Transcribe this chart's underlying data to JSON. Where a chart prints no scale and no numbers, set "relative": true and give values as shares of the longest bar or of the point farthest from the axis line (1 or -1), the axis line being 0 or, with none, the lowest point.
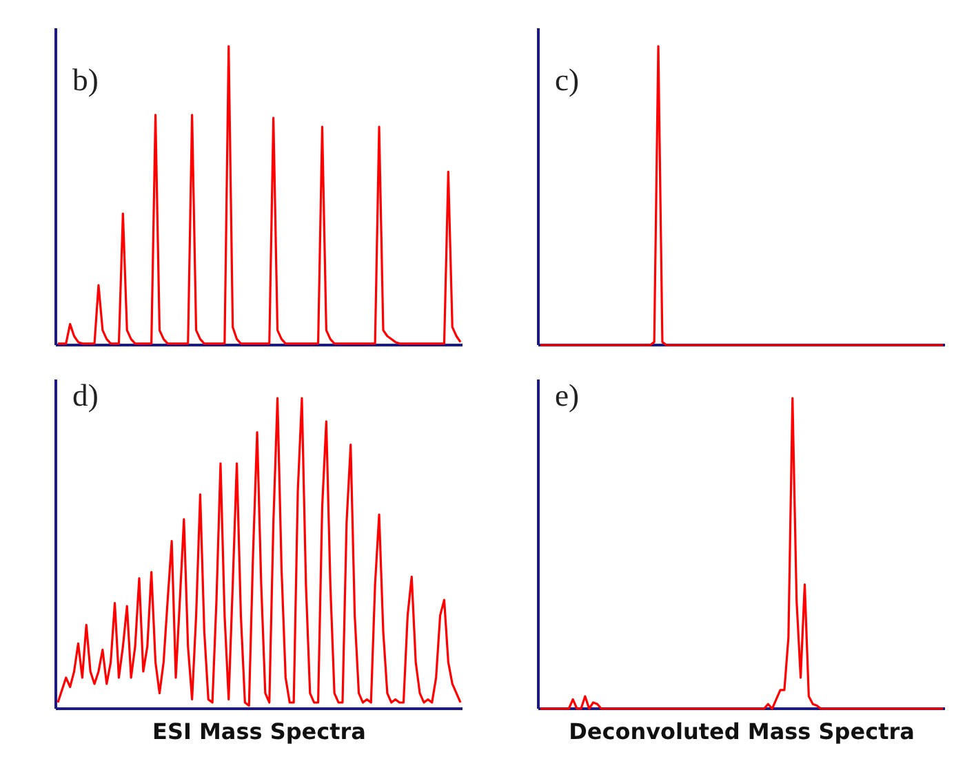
{
  "chart_data": [
    {
      "type": "line",
      "relative": true,
      "annotations": [
        "b)"
      ],
      "categories": [
        null,
        null,
        null,
        null,
        null,
        null,
        null,
        null,
        null,
        null,
        null,
        null,
        null,
        null,
        null,
        null,
        null,
        null,
        null,
        null,
        null,
        null,
        null,
        null,
        null,
        null,
        null,
        null,
        null,
        null,
        null,
        null,
        null,
        null,
        null,
        null,
        null,
        null,
        null,
        null,
        null,
        null,
        null,
        null,
        null,
        null,
        null,
        null,
        null,
        null,
        null,
        null,
        null,
        null,
        null,
        null,
        null,
        null,
        null,
        null,
        null,
        null,
        null,
        null,
        null,
        null,
        null,
        null,
        null,
        null,
        null,
        null,
        null,
        null,
        null,
        null,
        null,
        null,
        null,
        null,
        null,
        null,
        null,
        null,
        null,
        null,
        null,
        null,
        null,
        null,
        null,
        null,
        null,
        null,
        null,
        null,
        null,
        null,
        null,
        null
      ],
      "series": [
        {
          "color": "#ff0000",
          "values": [
            0.005,
            0.005,
            0.005,
            0.07,
            0.03,
            0.01,
            0.005,
            0.005,
            0.005,
            0.005,
            0.2,
            0.05,
            0.02,
            0.005,
            0.005,
            0.005,
            0.44,
            0.05,
            0.02,
            0.005,
            0.005,
            0.005,
            0.005,
            0.005,
            0.77,
            0.05,
            0.02,
            0.005,
            0.005,
            0.005,
            0.005,
            0.005,
            0.005,
            0.77,
            0.05,
            0.02,
            0.005,
            0.005,
            0.005,
            0.005,
            0.005,
            0.005,
            1.0,
            0.06,
            0.02,
            0.005,
            0.005,
            0.005,
            0.005,
            0.005,
            0.005,
            0.005,
            0.005,
            0.76,
            0.05,
            0.02,
            0.005,
            0.005,
            0.005,
            0.005,
            0.005,
            0.005,
            0.005,
            0.005,
            0.005,
            0.73,
            0.05,
            0.02,
            0.005,
            0.005,
            0.005,
            0.005,
            0.005,
            0.005,
            0.005,
            0.005,
            0.005,
            0.005,
            0.005,
            0.73,
            0.05,
            0.03,
            0.02,
            0.01,
            0.005,
            0.005,
            0.005,
            0.005,
            0.005,
            0.005,
            0.005,
            0.005,
            0.005,
            0.005,
            0.005,
            0.005,
            0.58,
            0.06,
            0.03,
            0.01
          ]
        }
      ]
    },
    {
      "type": "line",
      "relative": true,
      "annotations": [
        "c)"
      ],
      "categories": [
        null,
        null,
        null,
        null,
        null,
        null,
        null,
        null,
        null,
        null,
        null,
        null,
        null,
        null,
        null,
        null,
        null,
        null,
        null,
        null,
        null,
        null,
        null,
        null,
        null,
        null,
        null,
        null,
        null,
        null,
        null,
        null,
        null,
        null,
        null,
        null,
        null,
        null,
        null,
        null,
        null,
        null,
        null,
        null,
        null,
        null,
        null,
        null,
        null,
        null,
        null,
        null,
        null,
        null,
        null,
        null,
        null,
        null,
        null,
        null,
        null,
        null,
        null,
        null,
        null,
        null,
        null,
        null,
        null,
        null,
        null,
        null,
        null,
        null,
        null,
        null,
        null,
        null,
        null,
        null,
        null,
        null,
        null,
        null,
        null,
        null,
        null,
        null,
        null,
        null,
        null,
        null,
        null,
        null,
        null,
        null,
        null,
        null,
        null,
        null
      ],
      "series": [
        {
          "color": "#ff0000",
          "values": [
            0,
            0,
            0,
            0,
            0,
            0,
            0,
            0,
            0,
            0,
            0,
            0,
            0,
            0,
            0,
            0,
            0,
            0,
            0,
            0,
            0,
            0,
            0,
            0,
            0,
            0,
            0,
            0,
            0.01,
            1.0,
            0.01,
            0,
            0,
            0,
            0,
            0,
            0,
            0,
            0,
            0,
            0,
            0,
            0,
            0,
            0,
            0,
            0,
            0,
            0,
            0,
            0,
            0,
            0,
            0,
            0,
            0,
            0,
            0,
            0,
            0,
            0,
            0,
            0,
            0,
            0,
            0,
            0,
            0,
            0,
            0,
            0,
            0,
            0,
            0,
            0,
            0,
            0,
            0,
            0,
            0,
            0,
            0,
            0,
            0,
            0,
            0,
            0,
            0,
            0,
            0,
            0,
            0,
            0,
            0,
            0,
            0,
            0,
            0,
            0,
            0
          ]
        }
      ]
    },
    {
      "type": "line",
      "relative": true,
      "annotations": [
        "d)",
        "ESI Mass Spectra"
      ],
      "categories": [
        null,
        null,
        null,
        null,
        null,
        null,
        null,
        null,
        null,
        null,
        null,
        null,
        null,
        null,
        null,
        null,
        null,
        null,
        null,
        null,
        null,
        null,
        null,
        null,
        null,
        null,
        null,
        null,
        null,
        null,
        null,
        null,
        null,
        null,
        null,
        null,
        null,
        null,
        null,
        null,
        null,
        null,
        null,
        null,
        null,
        null,
        null,
        null,
        null,
        null,
        null,
        null,
        null,
        null,
        null,
        null,
        null,
        null,
        null,
        null,
        null,
        null,
        null,
        null,
        null,
        null,
        null,
        null,
        null,
        null,
        null,
        null,
        null,
        null,
        null,
        null,
        null,
        null,
        null,
        null,
        null,
        null,
        null,
        null,
        null,
        null,
        null,
        null,
        null,
        null,
        null,
        null,
        null,
        null,
        null,
        null,
        null,
        null,
        null,
        null
      ],
      "series": [
        {
          "color": "#ff0000",
          "values": [
            0.02,
            0.06,
            0.1,
            0.07,
            0.12,
            0.21,
            0.1,
            0.27,
            0.12,
            0.08,
            0.12,
            0.19,
            0.08,
            0.15,
            0.34,
            0.1,
            0.2,
            0.33,
            0.1,
            0.2,
            0.42,
            0.12,
            0.2,
            0.44,
            0.15,
            0.05,
            0.15,
            0.35,
            0.54,
            0.1,
            0.35,
            0.61,
            0.2,
            0.03,
            0.3,
            0.69,
            0.25,
            0.03,
            0.02,
            0.35,
            0.79,
            0.3,
            0.03,
            0.4,
            0.79,
            0.3,
            0.02,
            0.01,
            0.5,
            0.89,
            0.4,
            0.05,
            0.02,
            0.6,
            1.0,
            0.45,
            0.1,
            0.02,
            0.02,
            0.7,
            1.0,
            0.4,
            0.05,
            0.02,
            0.02,
            0.65,
            0.925,
            0.4,
            0.05,
            0.02,
            0.02,
            0.6,
            0.85,
            0.3,
            0.05,
            0.02,
            0.03,
            0.02,
            0.4,
            0.625,
            0.25,
            0.05,
            0.02,
            0.03,
            0.02,
            0.02,
            0.3,
            0.425,
            0.15,
            0.05,
            0.02,
            0.03,
            0.02,
            0.1,
            0.3,
            0.35,
            0.15,
            0.08,
            0.05,
            0.02
          ]
        }
      ]
    },
    {
      "type": "line",
      "relative": true,
      "annotations": [
        "e)",
        "Deconvoluted Mass Spectra"
      ],
      "categories": [
        null,
        null,
        null,
        null,
        null,
        null,
        null,
        null,
        null,
        null,
        null,
        null,
        null,
        null,
        null,
        null,
        null,
        null,
        null,
        null,
        null,
        null,
        null,
        null,
        null,
        null,
        null,
        null,
        null,
        null,
        null,
        null,
        null,
        null,
        null,
        null,
        null,
        null,
        null,
        null,
        null,
        null,
        null,
        null,
        null,
        null,
        null,
        null,
        null,
        null,
        null,
        null,
        null,
        null,
        null,
        null,
        null,
        null,
        null,
        null,
        null,
        null,
        null,
        null,
        null,
        null,
        null,
        null,
        null,
        null,
        null,
        null,
        null,
        null,
        null,
        null,
        null,
        null,
        null,
        null,
        null,
        null,
        null,
        null,
        null,
        null,
        null,
        null,
        null,
        null,
        null,
        null,
        null,
        null,
        null,
        null,
        null,
        null,
        null,
        null
      ],
      "series": [
        {
          "color": "#ff0000",
          "values": [
            0,
            0,
            0,
            0,
            0,
            0,
            0,
            0,
            0.03,
            0,
            0,
            0.04,
            0,
            0.02,
            0.015,
            0,
            0,
            0,
            0,
            0,
            0,
            0,
            0,
            0,
            0,
            0,
            0,
            0,
            0,
            0,
            0,
            0,
            0,
            0,
            0,
            0,
            0,
            0,
            0,
            0,
            0,
            0,
            0,
            0,
            0,
            0,
            0,
            0,
            0,
            0,
            0,
            0,
            0,
            0,
            0,
            0,
            0.015,
            0,
            0.03,
            0.06,
            0.06,
            0.23,
            1.0,
            0.35,
            0.1,
            0.4,
            0.04,
            0.015,
            0.01,
            0,
            0,
            0,
            0,
            0,
            0,
            0,
            0,
            0,
            0,
            0,
            0,
            0,
            0,
            0,
            0,
            0,
            0,
            0,
            0,
            0,
            0,
            0,
            0,
            0,
            0,
            0,
            0,
            0,
            0,
            0
          ]
        }
      ]
    }
  ]
}
